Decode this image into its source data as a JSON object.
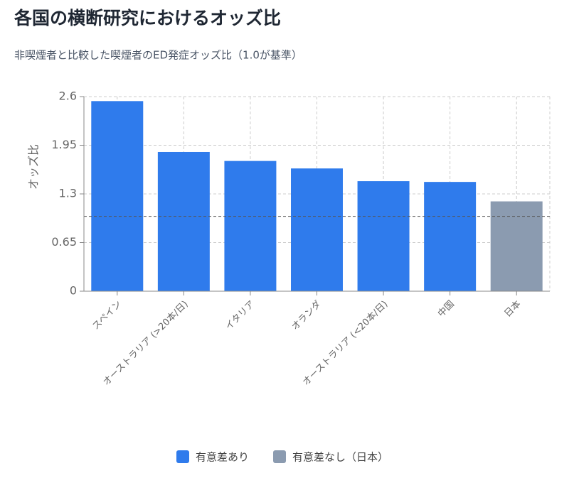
{
  "chart_data": {
    "type": "bar",
    "title": "各国の横断研究におけるオッズ比",
    "subtitle": "非喫煙者と比較した喫煙者のED発症オッズ比（1.0が基準）",
    "y_label": "オッズ比",
    "categories": [
      "スペイン",
      "オーストラリア (>20本/日)",
      "イタリア",
      "オランダ",
      "オーストラリア (<20本/日)",
      "中国",
      "日本"
    ],
    "series": [
      {
        "name": "有意差あり",
        "color": "#2f7bec",
        "values": [
          2.54,
          1.86,
          1.74,
          1.64,
          1.47,
          1.46,
          null
        ]
      },
      {
        "name": "有意差なし（日本）",
        "color": "#8b9bb0",
        "values": [
          null,
          null,
          null,
          null,
          null,
          null,
          1.2
        ]
      }
    ],
    "reference_line": 1,
    "ylim": [
      0,
      2.6
    ],
    "yticks": [
      0,
      0.65,
      1.3,
      1.95,
      2.6
    ],
    "grid": true
  }
}
